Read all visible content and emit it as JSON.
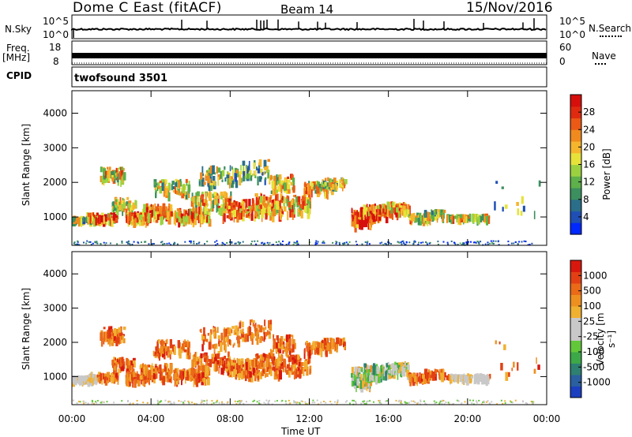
{
  "header": {
    "title": "Dome C East (fitACF)",
    "beam": "Beam 14",
    "date": "15/Nov/2016"
  },
  "nsky_panel": {
    "label": "N.Sky",
    "tick_top": "10^5",
    "tick_bottom": "10^0",
    "right_label": "N.Search",
    "right_tick_top": "10^5",
    "right_tick_bottom": "10^0"
  },
  "freq_panel": {
    "label_line1": "Freq.",
    "label_line2": "[MHz]",
    "tick_top": "18",
    "tick_bottom": "8",
    "right_label": "Nave",
    "right_tick_top": "60",
    "right_tick_bottom": "0"
  },
  "cpid_panel": {
    "label": "CPID",
    "value": "twofsound 3501"
  },
  "chart_data": [
    {
      "type": "heatmap",
      "name": "power",
      "ylabel": "Slant Range [km]",
      "xlabel": "Time UT",
      "x_ticks": [
        "00:00",
        "04:00",
        "08:00",
        "12:00",
        "16:00",
        "20:00",
        "00:00"
      ],
      "y_ticks": [
        1000,
        2000,
        3000,
        4000
      ],
      "ylim": [
        180,
        4650
      ],
      "xlim_hours": [
        0,
        24
      ],
      "colorbar": {
        "label": "Power [dB]",
        "ticks": [
          "4",
          "8",
          "12",
          "16",
          "20",
          "24",
          "28"
        ],
        "colors": [
          "#0028ff",
          "#1f4fb4",
          "#2a6e8a",
          "#3c8f5e",
          "#5db04a",
          "#9bd140",
          "#e6e23a",
          "#f5b62d",
          "#f08a1e",
          "#ea5a16",
          "#e02a10",
          "#d60f0c"
        ]
      }
    },
    {
      "type": "heatmap",
      "name": "velocity",
      "ylabel": "Slant Range [km]",
      "xlabel": "Time UT",
      "x_ticks": [
        "00:00",
        "04:00",
        "08:00",
        "12:00",
        "16:00",
        "20:00",
        "00:00"
      ],
      "y_ticks": [
        1000,
        2000,
        3000,
        4000
      ],
      "ylim": [
        180,
        4650
      ],
      "xlim_hours": [
        0,
        24
      ],
      "colorbar": {
        "label": "Velocity [m s⁻¹]",
        "ticks": [
          "1000",
          "500",
          "100",
          "25",
          "-25",
          "-100",
          "-500",
          "-1000"
        ],
        "colors": [
          "#1c3fc0",
          "#2a5fa0",
          "#2e8070",
          "#3ca848",
          "#62c83a",
          "#c8c8c8",
          "#c8c8c8",
          "#f0b030",
          "#ee9020",
          "#ea6a18",
          "#e24014",
          "#d8180e"
        ]
      }
    }
  ],
  "time_axis": {
    "label": "Time UT",
    "ticks": [
      "00:00",
      "04:00",
      "08:00",
      "12:00",
      "16:00",
      "20:00",
      "00:00"
    ]
  }
}
